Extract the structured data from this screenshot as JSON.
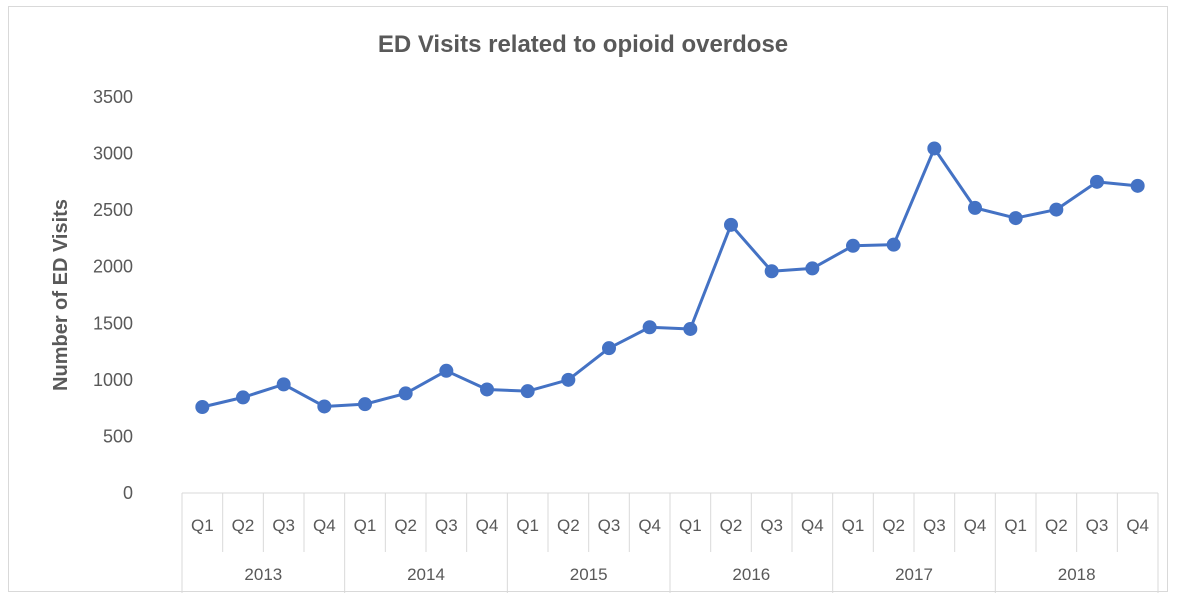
{
  "chart_data": {
    "type": "line",
    "title": "ED Visits related to opioid overdose",
    "xlabel": "",
    "ylabel": "Number of ED Visits",
    "ylim": [
      0,
      3500
    ],
    "yticks": [
      0,
      500,
      1000,
      1500,
      2000,
      2500,
      3000,
      3500
    ],
    "grid": false,
    "legend": "none",
    "years": [
      "2013",
      "2014",
      "2015",
      "2016",
      "2017",
      "2018"
    ],
    "quarters": [
      "Q1",
      "Q2",
      "Q3",
      "Q4"
    ],
    "categories": [
      "2013 Q1",
      "2013 Q2",
      "2013 Q3",
      "2013 Q4",
      "2014 Q1",
      "2014 Q2",
      "2014 Q3",
      "2014 Q4",
      "2015 Q1",
      "2015 Q2",
      "2015 Q3",
      "2015 Q4",
      "2016 Q1",
      "2016 Q2",
      "2016 Q3",
      "2016 Q4",
      "2017 Q1",
      "2017 Q2",
      "2017 Q3",
      "2017 Q4",
      "2018 Q1",
      "2018 Q2",
      "2018 Q3",
      "2018 Q4"
    ],
    "series": [
      {
        "values": [
          760,
          845,
          960,
          765,
          785,
          880,
          1080,
          915,
          900,
          1000,
          1280,
          1465,
          1450,
          2370,
          1960,
          1985,
          2185,
          2195,
          3045,
          2520,
          2430,
          2505,
          2750,
          2715
        ]
      }
    ],
    "colors": {
      "series": "#4472c4",
      "axis": "#d9d9d9",
      "text": "#595959"
    }
  }
}
